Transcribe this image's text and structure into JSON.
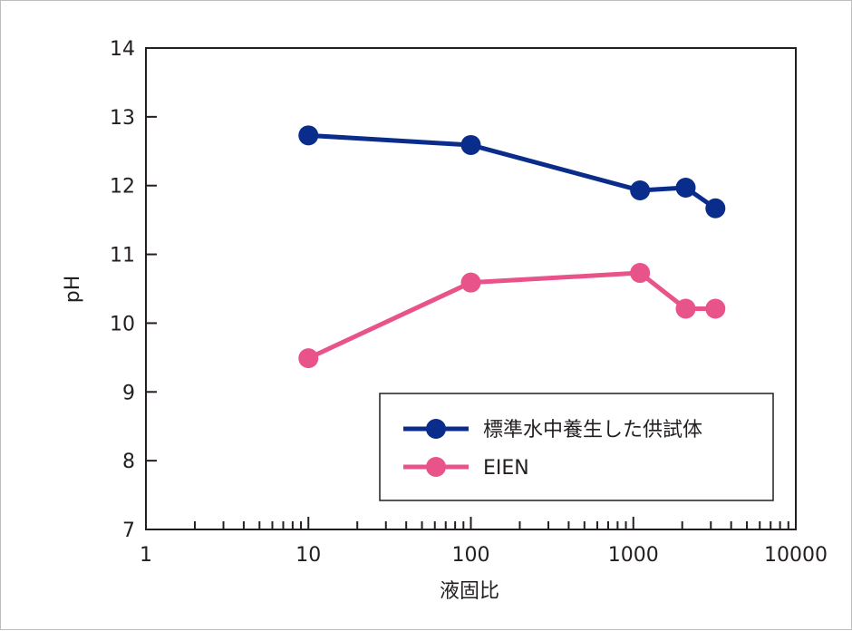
{
  "chart_data": {
    "type": "line",
    "xscale": "log",
    "xlim": [
      1,
      10000
    ],
    "ylim": [
      7,
      14
    ],
    "xlabel": "液固比",
    "ylabel": "pH",
    "x_ticks": [
      1,
      10,
      100,
      1000,
      10000
    ],
    "x_tick_labels": [
      "1",
      "10",
      "100",
      "1000",
      "10000"
    ],
    "y_ticks": [
      7,
      8,
      9,
      10,
      11,
      12,
      13,
      14
    ],
    "y_tick_labels": [
      "7",
      "8",
      "9",
      "10",
      "11",
      "12",
      "13",
      "14"
    ],
    "legend_position": "bottom-right",
    "grid": false,
    "series": [
      {
        "name": "標準水中養生した供試体",
        "color": "#0a2d8c",
        "x": [
          10,
          100,
          1100,
          2100,
          3200
        ],
        "y": [
          12.73,
          12.59,
          11.93,
          11.97,
          11.67
        ]
      },
      {
        "name": "EIEN",
        "color": "#e8538a",
        "x": [
          10,
          100,
          1100,
          2100,
          3200
        ],
        "y": [
          9.49,
          10.59,
          10.73,
          10.21,
          10.21
        ]
      }
    ]
  }
}
